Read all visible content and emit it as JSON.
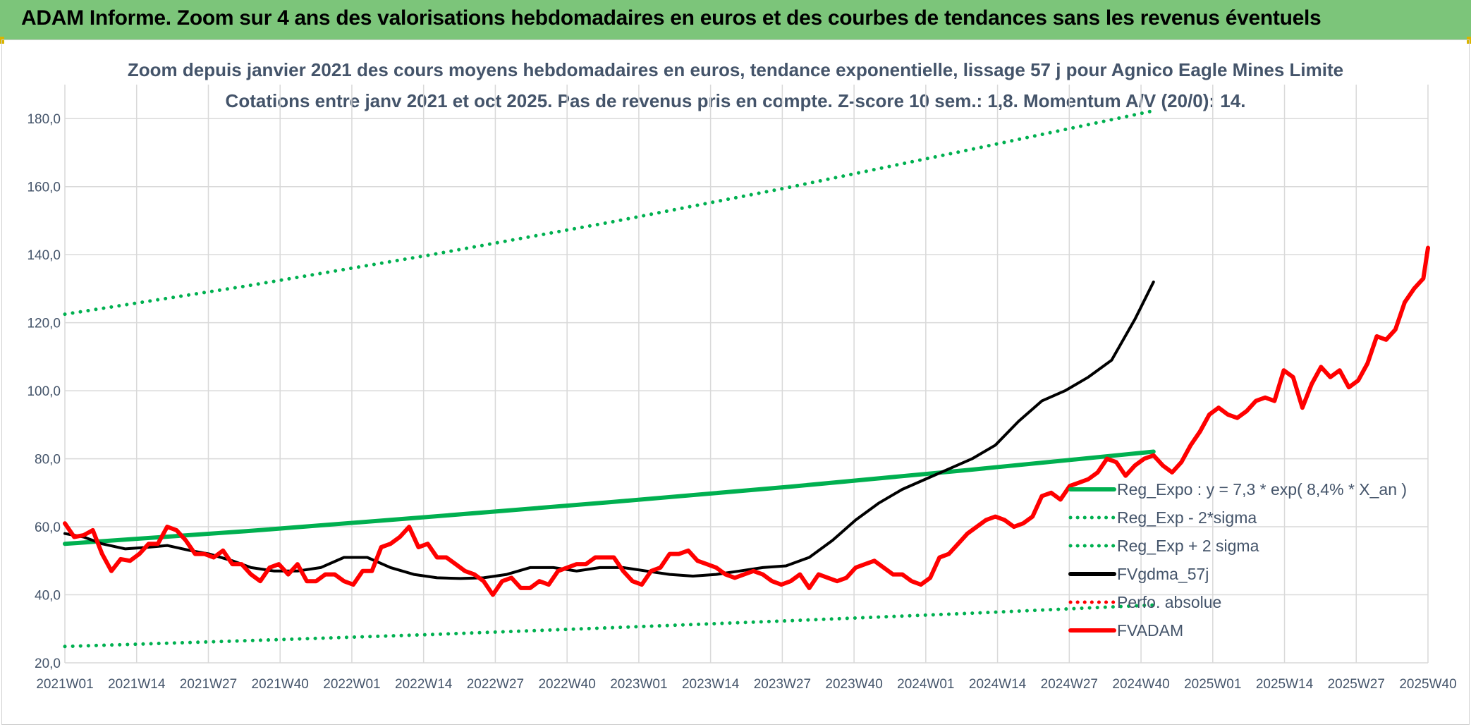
{
  "banner": {
    "title": "ADAM Informe. Zoom sur 4 ans des valorisations hebdomadaires en euros et des courbes de tendances sans les revenus éventuels"
  },
  "colors": {
    "banner": "#7cc57a",
    "green": "#00b050",
    "red": "#ff0000",
    "black": "#000000",
    "axis_text": "#44546a",
    "grid": "#d9d9d9"
  },
  "chart_data": {
    "type": "line",
    "title": "Zoom depuis janvier 2021 des cours moyens hebdomadaires en euros, tendance exponentielle, lissage 57 j pour Agnico Eagle Mines Limite",
    "subtitle": "Cotations entre janv 2021 et oct 2025. Pas de revenus pris en compte. Z-score 10 sem.: 1,8. Momentum A/V (20/0): 14.",
    "ylim": [
      20,
      190
    ],
    "yticks": [
      "20,0",
      "40,0",
      "60,0",
      "80,0",
      "100,0",
      "120,0",
      "140,0",
      "160,0",
      "180,0"
    ],
    "x_categories": [
      "2021W01",
      "2021W14",
      "2021W27",
      "2021W40",
      "2022W01",
      "2022W14",
      "2022W27",
      "2022W40",
      "2023W01",
      "2023W14",
      "2023W27",
      "2023W40",
      "2024W01",
      "2024W14",
      "2024W27",
      "2024W40",
      "2025W01",
      "2025W14",
      "2025W27",
      "2025W40"
    ],
    "legend": {
      "position": "bottom-right",
      "entries": [
        {
          "label": "Reg_Expo : y = 7,3 * exp( 8,4% *  X_an )",
          "style": "solid",
          "color": "#00b050"
        },
        {
          "label": "Reg_Exp - 2*sigma",
          "style": "dotted",
          "color": "#00b050"
        },
        {
          "label": "Reg_Exp + 2 sigma",
          "style": "dotted",
          "color": "#00b050"
        },
        {
          "label": "FVgdma_57j",
          "style": "solid",
          "color": "#000000"
        },
        {
          "label": "Perfo. absolue",
          "style": "dotted",
          "color": "#ff0000"
        },
        {
          "label": "FVADAM",
          "style": "solid",
          "color": "#ff0000"
        }
      ]
    },
    "series": [
      {
        "name": "Reg_Expo : y = 7,3 * exp( 8,4% *  X_an )",
        "points": [
          [
            0,
            55.0
          ],
          [
            39,
            58.7
          ],
          [
            78,
            62.9
          ],
          [
            117,
            67.2
          ],
          [
            156,
            71.8
          ],
          [
            195,
            76.8
          ],
          [
            234,
            82.1
          ]
        ]
      },
      {
        "name": "Reg_Exp - 2*sigma",
        "points": [
          [
            0,
            24.8
          ],
          [
            39,
            26.5
          ],
          [
            78,
            28.3
          ],
          [
            117,
            30.3
          ],
          [
            156,
            32.4
          ],
          [
            195,
            34.6
          ],
          [
            234,
            37.0
          ]
        ]
      },
      {
        "name": "Reg_Exp + 2 sigma",
        "points": [
          [
            0,
            122.5
          ],
          [
            39,
            130.8
          ],
          [
            78,
            139.8
          ],
          [
            117,
            149.5
          ],
          [
            156,
            159.9
          ],
          [
            195,
            171.0
          ],
          [
            234,
            182.3
          ]
        ]
      },
      {
        "name": "FVgdma_57j",
        "points": [
          [
            0,
            58
          ],
          [
            4,
            57
          ],
          [
            8,
            55
          ],
          [
            13,
            53.5
          ],
          [
            18,
            54
          ],
          [
            22,
            54.5
          ],
          [
            27,
            53
          ],
          [
            31,
            52
          ],
          [
            36,
            50
          ],
          [
            40,
            48
          ],
          [
            45,
            47
          ],
          [
            50,
            47
          ],
          [
            55,
            48
          ],
          [
            60,
            51
          ],
          [
            65,
            51
          ],
          [
            70,
            48
          ],
          [
            75,
            46
          ],
          [
            80,
            45
          ],
          [
            85,
            44.8
          ],
          [
            90,
            45
          ],
          [
            95,
            46
          ],
          [
            100,
            48
          ],
          [
            105,
            48
          ],
          [
            110,
            47
          ],
          [
            115,
            48
          ],
          [
            120,
            48
          ],
          [
            125,
            47
          ],
          [
            130,
            46
          ],
          [
            135,
            45.5
          ],
          [
            140,
            46
          ],
          [
            145,
            47
          ],
          [
            150,
            48
          ],
          [
            155,
            48.5
          ],
          [
            160,
            51
          ],
          [
            165,
            56
          ],
          [
            170,
            62
          ],
          [
            175,
            67
          ],
          [
            180,
            71
          ],
          [
            185,
            74
          ],
          [
            190,
            77
          ],
          [
            195,
            80
          ],
          [
            200,
            84
          ],
          [
            205,
            91
          ],
          [
            210,
            97
          ],
          [
            215,
            100
          ],
          [
            220,
            104
          ],
          [
            225,
            109
          ],
          [
            230,
            121
          ],
          [
            234,
            132
          ]
        ]
      },
      {
        "name": "FVADAM",
        "points": [
          [
            0,
            61
          ],
          [
            2,
            57
          ],
          [
            4,
            57.5
          ],
          [
            6,
            59
          ],
          [
            8,
            52
          ],
          [
            10,
            47
          ],
          [
            12,
            50.5
          ],
          [
            14,
            50
          ],
          [
            16,
            52
          ],
          [
            18,
            55
          ],
          [
            20,
            55
          ],
          [
            22,
            60
          ],
          [
            24,
            59
          ],
          [
            26,
            56
          ],
          [
            28,
            52
          ],
          [
            30,
            52
          ],
          [
            32,
            51
          ],
          [
            34,
            53
          ],
          [
            36,
            49
          ],
          [
            38,
            49
          ],
          [
            40,
            46
          ],
          [
            42,
            44
          ],
          [
            44,
            48
          ],
          [
            46,
            49
          ],
          [
            48,
            46
          ],
          [
            50,
            49
          ],
          [
            52,
            44
          ],
          [
            54,
            44
          ],
          [
            56,
            46
          ],
          [
            58,
            46
          ],
          [
            60,
            44
          ],
          [
            62,
            43
          ],
          [
            64,
            47
          ],
          [
            66,
            47
          ],
          [
            68,
            54
          ],
          [
            70,
            55
          ],
          [
            72,
            57
          ],
          [
            74,
            60
          ],
          [
            76,
            54
          ],
          [
            78,
            55
          ],
          [
            80,
            51
          ],
          [
            82,
            51
          ],
          [
            84,
            49
          ],
          [
            86,
            47
          ],
          [
            88,
            46
          ],
          [
            90,
            44
          ],
          [
            92,
            40
          ],
          [
            94,
            44
          ],
          [
            96,
            45
          ],
          [
            98,
            42
          ],
          [
            100,
            42
          ],
          [
            102,
            44
          ],
          [
            104,
            43
          ],
          [
            106,
            47
          ],
          [
            108,
            48
          ],
          [
            110,
            49
          ],
          [
            112,
            49
          ],
          [
            114,
            51
          ],
          [
            116,
            51
          ],
          [
            118,
            51
          ],
          [
            120,
            47
          ],
          [
            122,
            44
          ],
          [
            124,
            43
          ],
          [
            126,
            47
          ],
          [
            128,
            48
          ],
          [
            130,
            52
          ],
          [
            132,
            52
          ],
          [
            134,
            53
          ],
          [
            136,
            50
          ],
          [
            138,
            49
          ],
          [
            140,
            48
          ],
          [
            142,
            46
          ],
          [
            144,
            45
          ],
          [
            146,
            46
          ],
          [
            148,
            47
          ],
          [
            150,
            46
          ],
          [
            152,
            44
          ],
          [
            154,
            43
          ],
          [
            156,
            44
          ],
          [
            158,
            46
          ],
          [
            160,
            42
          ],
          [
            162,
            46
          ],
          [
            164,
            45
          ],
          [
            166,
            44
          ],
          [
            168,
            45
          ],
          [
            170,
            48
          ],
          [
            172,
            49
          ],
          [
            174,
            50
          ],
          [
            176,
            48
          ],
          [
            178,
            46
          ],
          [
            180,
            46
          ],
          [
            182,
            44
          ],
          [
            184,
            43
          ],
          [
            186,
            45
          ],
          [
            188,
            51
          ],
          [
            190,
            52
          ],
          [
            192,
            55
          ],
          [
            194,
            58
          ],
          [
            196,
            60
          ],
          [
            198,
            62
          ],
          [
            200,
            63
          ],
          [
            202,
            62
          ],
          [
            204,
            60
          ],
          [
            206,
            61
          ],
          [
            208,
            63
          ],
          [
            210,
            69
          ],
          [
            212,
            70
          ],
          [
            214,
            68
          ],
          [
            216,
            72
          ],
          [
            218,
            73
          ],
          [
            220,
            74
          ],
          [
            222,
            76
          ],
          [
            224,
            80
          ],
          [
            226,
            79
          ],
          [
            228,
            75
          ],
          [
            230,
            78
          ],
          [
            232,
            80
          ],
          [
            234,
            81
          ],
          [
            236,
            78
          ],
          [
            238,
            76
          ],
          [
            240,
            79
          ],
          [
            242,
            84
          ],
          [
            244,
            88
          ],
          [
            246,
            93
          ],
          [
            248,
            95
          ],
          [
            250,
            93
          ],
          [
            252,
            92
          ],
          [
            254,
            94
          ],
          [
            256,
            97
          ],
          [
            258,
            98
          ],
          [
            260,
            97
          ],
          [
            262,
            106
          ],
          [
            264,
            104
          ],
          [
            266,
            95
          ],
          [
            268,
            102
          ],
          [
            270,
            107
          ],
          [
            272,
            104
          ],
          [
            274,
            106
          ],
          [
            276,
            101
          ],
          [
            278,
            103
          ],
          [
            280,
            108
          ],
          [
            282,
            116
          ],
          [
            284,
            115
          ],
          [
            286,
            118
          ],
          [
            288,
            126
          ],
          [
            290,
            130
          ],
          [
            292,
            133
          ],
          [
            293,
            142
          ]
        ]
      }
    ]
  }
}
